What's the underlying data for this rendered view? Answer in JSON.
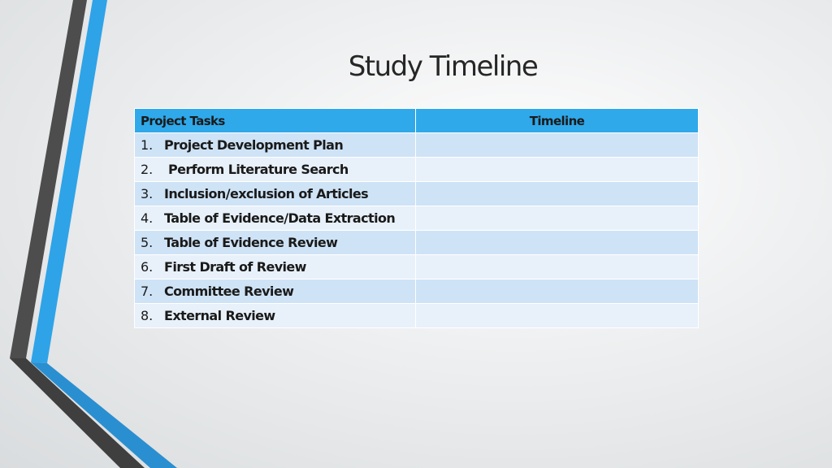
{
  "slide": {
    "title": "Study Timeline"
  },
  "table": {
    "headers": {
      "tasks": "Project Tasks",
      "timeline": "Timeline"
    },
    "rows": [
      {
        "num": "1.",
        "task": "Project Development Plan",
        "timeline": ""
      },
      {
        "num": "2.",
        "task": " Perform Literature Search",
        "timeline": ""
      },
      {
        "num": "3.",
        "task": "Inclusion/exclusion of Articles",
        "timeline": ""
      },
      {
        "num": "4.",
        "task": "Table of Evidence/Data Extraction",
        "timeline": ""
      },
      {
        "num": "5.",
        "task": "Table of Evidence Review",
        "timeline": ""
      },
      {
        "num": "6.",
        "task": "First Draft of Review",
        "timeline": ""
      },
      {
        "num": "7.",
        "task": "Committee Review",
        "timeline": ""
      },
      {
        "num": "8.",
        "task": "External Review",
        "timeline": ""
      }
    ]
  },
  "colors": {
    "header_fill": "#2fa9ea",
    "row_odd": "#cfe3f6",
    "row_even": "#e8f1fa",
    "accent_blue": "#2ea3e8",
    "accent_gray": "#4d4d4d"
  }
}
